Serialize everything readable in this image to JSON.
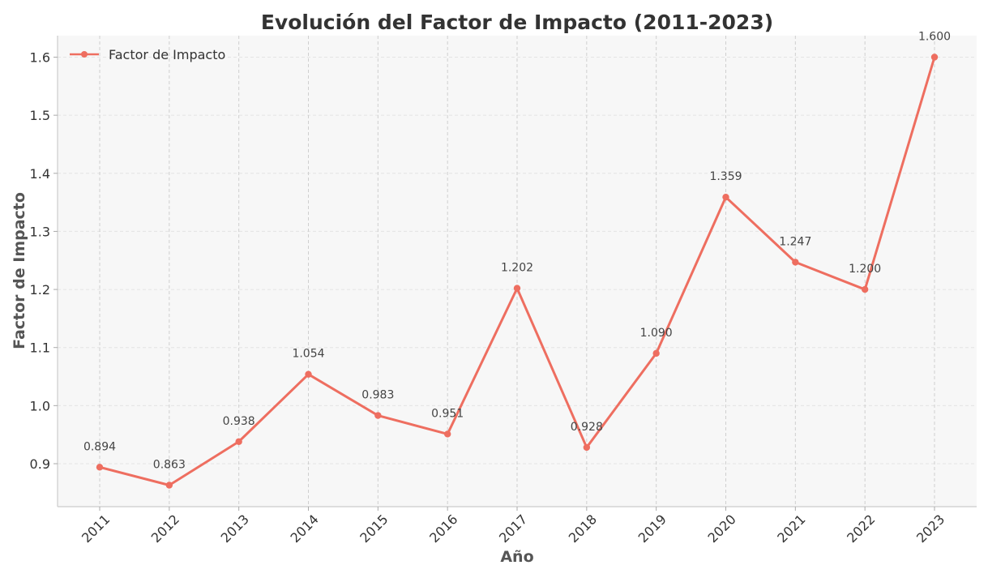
{
  "chart_data": {
    "type": "line",
    "title": "Evolución del Factor de Impacto (2011-2023)",
    "xlabel": "Año",
    "ylabel": "Factor de Impacto",
    "categories": [
      "2011",
      "2012",
      "2013",
      "2014",
      "2015",
      "2016",
      "2017",
      "2018",
      "2019",
      "2020",
      "2021",
      "2022",
      "2023"
    ],
    "series": [
      {
        "name": "Factor de Impacto",
        "values": [
          0.894,
          0.863,
          0.938,
          1.054,
          0.983,
          0.951,
          1.202,
          0.928,
          1.09,
          1.359,
          1.247,
          1.2,
          1.6
        ],
        "labels": [
          "0.894",
          "0.863",
          "0.938",
          "1.054",
          "0.983",
          "0.951",
          "1.202",
          "0.928",
          "1.090",
          "1.359",
          "1.247",
          "1.200",
          "1.600"
        ],
        "color": "#ee6e60"
      }
    ],
    "yticks": [
      "0.9",
      "1.0",
      "1.1",
      "1.2",
      "1.3",
      "1.4",
      "1.5",
      "1.6"
    ],
    "ylim": [
      0.826,
      1.637
    ],
    "grid": true,
    "legend_position": "top-left",
    "background": "#f7f7f7"
  }
}
